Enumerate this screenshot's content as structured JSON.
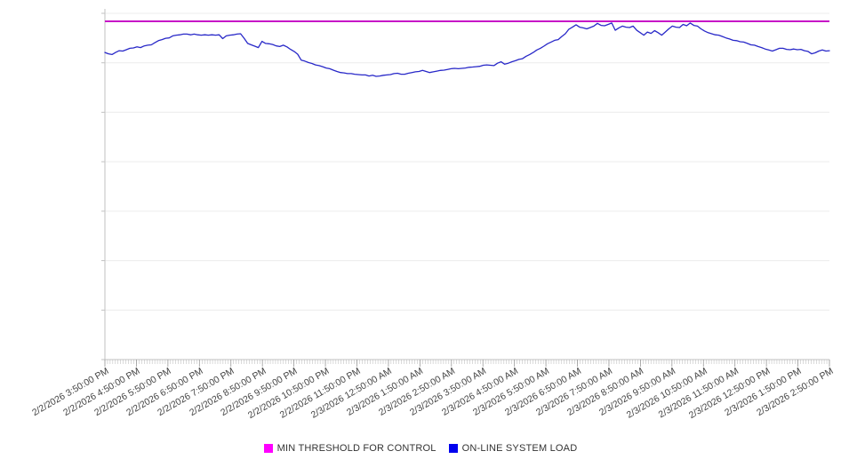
{
  "page": {
    "background": "#FFFFFF"
  },
  "chart_data": {
    "type": "line",
    "title": "",
    "gridlines": "horizontal",
    "legend_position": "bottom",
    "x_tick_labels": [
      "2/2/2026 3:50:00 PM",
      "2/2/2026 4:50:00 PM",
      "2/2/2026 5:50:00 PM",
      "2/2/2026 6:50:00 PM",
      "2/2/2026 7:50:00 PM",
      "2/2/2026 8:50:00 PM",
      "2/2/2026 9:50:00 PM",
      "2/2/2026 10:50:00 PM",
      "2/2/2026 11:50:00 PM",
      "2/3/2026 12:50:00 AM",
      "2/3/2026 1:50:00 AM",
      "2/3/2026 2:50:00 AM",
      "2/3/2026 3:50:00 AM",
      "2/3/2026 4:50:00 AM",
      "2/3/2026 5:50:00 AM",
      "2/3/2026 6:50:00 AM",
      "2/3/2026 7:50:00 AM",
      "2/3/2026 8:50:00 AM",
      "2/3/2026 9:50:00 AM",
      "2/3/2026 10:50:00 AM",
      "2/3/2026 11:50:00 AM",
      "2/3/2026 12:50:00 PM",
      "2/3/2026 1:50:00 PM",
      "2/3/2026 2:50:00 PM"
    ],
    "y_axis": {
      "visible_labels": false,
      "scale": "relative-percent-of-plot-height",
      "range": [
        0,
        100
      ],
      "gridline_divisions": 7
    },
    "series": [
      {
        "name": "MIN THRESHOLD FOR CONTROL",
        "role": "threshold",
        "color": "#C716C7",
        "swatch_color": "#FF00FF",
        "value": 97.7
      },
      {
        "name": "ON-LINE SYSTEM LOAD",
        "role": "line",
        "color": "#2828C8",
        "swatch_color": "#0000EE",
        "values": [
          88.7,
          88.3,
          88.1,
          88.7,
          89.2,
          89.1,
          89.5,
          89.9,
          90.0,
          90.3,
          90.1,
          90.6,
          90.8,
          90.9,
          91.5,
          92.1,
          92.4,
          92.8,
          92.9,
          93.5,
          93.7,
          93.8,
          94.0,
          94.0,
          93.8,
          94.0,
          93.8,
          93.7,
          93.8,
          93.7,
          93.8,
          93.7,
          93.8,
          92.7,
          93.5,
          93.7,
          93.8,
          94.0,
          94.1,
          92.8,
          91.3,
          90.9,
          90.5,
          90.1,
          91.9,
          91.3,
          91.2,
          91.0,
          90.6,
          90.4,
          90.8,
          90.3,
          89.6,
          89.0,
          88.2,
          86.5,
          86.2,
          85.8,
          85.5,
          85.1,
          84.9,
          84.6,
          84.2,
          84.0,
          83.6,
          83.2,
          82.9,
          82.8,
          82.6,
          82.6,
          82.4,
          82.3,
          82.2,
          82.2,
          81.9,
          82.1,
          81.8,
          81.9,
          82.1,
          82.2,
          82.3,
          82.6,
          82.7,
          82.4,
          82.4,
          82.7,
          82.9,
          83.1,
          83.2,
          83.5,
          83.2,
          82.9,
          83.1,
          83.3,
          83.5,
          83.6,
          83.8,
          84.0,
          84.1,
          84.0,
          84.1,
          84.2,
          84.4,
          84.5,
          84.6,
          84.7,
          85.0,
          85.1,
          85.0,
          84.9,
          85.6,
          86.0,
          85.3,
          85.6,
          86.0,
          86.3,
          86.7,
          86.9,
          87.6,
          88.1,
          88.7,
          89.4,
          89.9,
          90.5,
          91.2,
          91.7,
          92.2,
          92.4,
          93.3,
          94.1,
          95.4,
          96.0,
          96.7,
          96.0,
          95.8,
          95.5,
          95.9,
          96.3,
          97.1,
          96.5,
          96.4,
          96.8,
          97.2,
          95.1,
          95.8,
          96.3,
          96.0,
          95.9,
          96.3,
          95.1,
          94.4,
          93.7,
          94.6,
          94.2,
          95.0,
          94.4,
          93.7,
          94.6,
          95.5,
          96.3,
          96.0,
          95.9,
          96.8,
          96.4,
          97.2,
          96.5,
          96.3,
          95.5,
          94.9,
          94.4,
          94.1,
          93.8,
          93.7,
          93.3,
          92.9,
          92.6,
          92.2,
          92.1,
          91.8,
          91.7,
          91.3,
          90.9,
          90.8,
          90.4,
          90.1,
          89.7,
          89.4,
          89.1,
          89.5,
          89.9,
          89.9,
          89.6,
          89.5,
          89.7,
          89.5,
          89.6,
          89.2,
          89.0,
          88.3,
          88.6,
          89.1,
          89.4,
          89.1,
          89.2
        ]
      }
    ],
    "style": {
      "grid_color": "#ECECEC",
      "axis_color": "#C2C2C2",
      "minor_tick_color": "#B5B5B5",
      "major_tick_color": "#9A9A9A",
      "xlabel_color": "#444444",
      "legend_text_color": "#333333"
    }
  }
}
